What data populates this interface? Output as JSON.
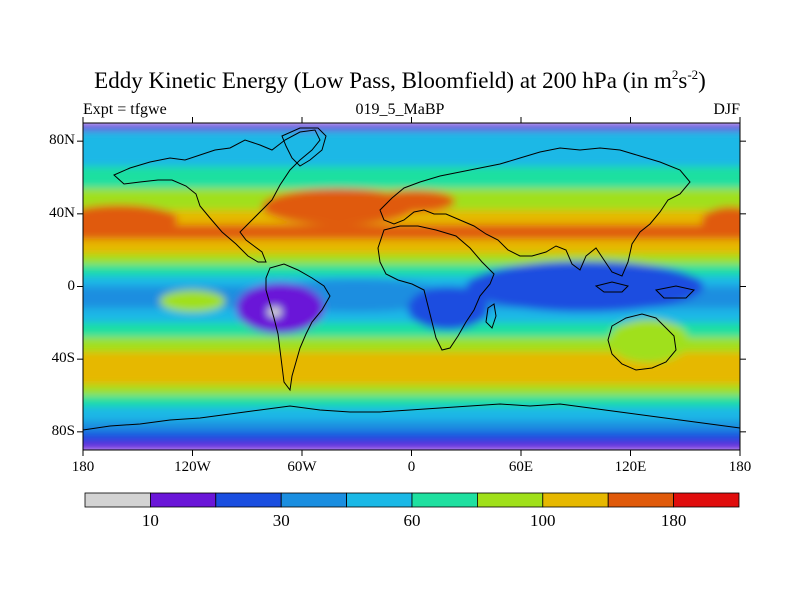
{
  "chart_data": {
    "type": "heatmap",
    "title_main": "Eddy Kinetic Energy (Low Pass, Bloomfield) at 200 hPa (in m",
    "title_sup1": "2",
    "title_mid": "s",
    "title_sup2": "-2",
    "title_end": ")",
    "left_label": "Expt = tfgwe",
    "center_label": "019_5_MaBP",
    "right_label": "DJF",
    "x_ticks": [
      "180",
      "120W",
      "60W",
      "0",
      "60E",
      "120E",
      "180"
    ],
    "x_tick_values": [
      -180,
      -120,
      -60,
      0,
      60,
      120,
      180
    ],
    "y_ticks": [
      "80N",
      "40N",
      "0",
      "40S",
      "80S"
    ],
    "y_tick_values": [
      80,
      40,
      0,
      -40,
      -80
    ],
    "xlim": [
      -180,
      180
    ],
    "ylim": [
      -90,
      90
    ],
    "colorbar": {
      "colors": [
        "#d3d3d3",
        "#6a16d8",
        "#1a4ee0",
        "#1a8ee0",
        "#1ab8e6",
        "#1fe0a0",
        "#a0e01a",
        "#e6b800",
        "#e05a0a",
        "#e00d0d"
      ],
      "labels": [
        "10",
        "30",
        "60",
        "100",
        "180"
      ],
      "label_after_box": [
        1,
        3,
        5,
        7,
        9
      ]
    },
    "bands": [
      {
        "lat": 90,
        "level": 1
      },
      {
        "lat": 86,
        "level": 4
      },
      {
        "lat": 78,
        "level": 4
      },
      {
        "lat": 66,
        "level": 5
      },
      {
        "lat": 54,
        "level": 6
      },
      {
        "lat": 42,
        "level": 7
      },
      {
        "lat": 34,
        "level": 8
      },
      {
        "lat": 26,
        "level": 7
      },
      {
        "lat": 18,
        "level": 6
      },
      {
        "lat": 12,
        "level": 5
      },
      {
        "lat": 6,
        "level": 4
      },
      {
        "lat": 0,
        "level": 3
      },
      {
        "lat": -6,
        "level": 3
      },
      {
        "lat": -12,
        "level": 4
      },
      {
        "lat": -20,
        "level": 5
      },
      {
        "lat": -28,
        "level": 6
      },
      {
        "lat": -36,
        "level": 7
      },
      {
        "lat": -46,
        "level": 7
      },
      {
        "lat": -54,
        "level": 6
      },
      {
        "lat": -60,
        "level": 5
      },
      {
        "lat": -66,
        "level": 4
      },
      {
        "lat": -74,
        "level": 3
      },
      {
        "lat": -80,
        "level": 2
      },
      {
        "lat": -86,
        "level": 1
      },
      {
        "lat": -90,
        "level": 1
      }
    ],
    "blobs": [
      {
        "lon": -160,
        "lat": 37,
        "rlon": 32,
        "rlat": 8,
        "level": 8
      },
      {
        "lon": 175,
        "lat": 36,
        "rlon": 16,
        "rlat": 8,
        "level": 8
      },
      {
        "lon": -40,
        "lat": 44,
        "rlon": 42,
        "rlat": 10,
        "level": 8
      },
      {
        "lon": 2,
        "lat": 47,
        "rlon": 22,
        "rlat": 6,
        "level": 8
      },
      {
        "lon": 95,
        "lat": 0,
        "rlon": 65,
        "rlat": 14,
        "level": 2
      },
      {
        "lon": -30,
        "lat": -5,
        "rlon": 50,
        "rlat": 9,
        "level": 3
      },
      {
        "lon": 20,
        "lat": -12,
        "rlon": 22,
        "rlat": 12,
        "level": 2
      },
      {
        "lon": -72,
        "lat": -12,
        "rlon": 24,
        "rlat": 14,
        "level": 1
      },
      {
        "lon": 130,
        "lat": -30,
        "rlon": 22,
        "rlat": 12,
        "level": 6
      },
      {
        "lon": -120,
        "lat": -8,
        "rlon": 18,
        "rlat": 6,
        "level": 6
      },
      {
        "lon": -75,
        "lat": -14,
        "rlon": 4,
        "rlat": 3,
        "level": 0
      }
    ]
  }
}
